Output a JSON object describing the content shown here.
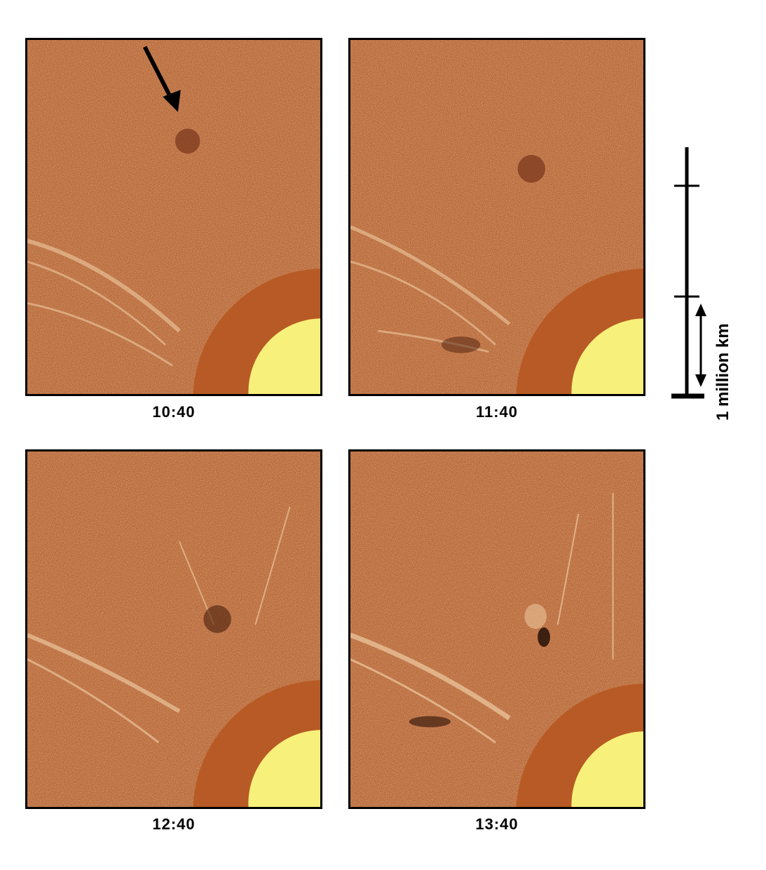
{
  "figure": {
    "panels": [
      {
        "id": "p1",
        "time": "10:40",
        "has_arrow": true
      },
      {
        "id": "p2",
        "time": "11:40",
        "has_arrow": false
      },
      {
        "id": "p3",
        "time": "12:40",
        "has_arrow": false
      },
      {
        "id": "p4",
        "time": "13:40",
        "has_arrow": false
      }
    ],
    "scale_bar": {
      "label": "1 million km"
    },
    "colors": {
      "background_texture": "#b8683a",
      "occulter": "#b85a25",
      "sun_disk": "#f7f07a",
      "frame": "#000000"
    }
  }
}
